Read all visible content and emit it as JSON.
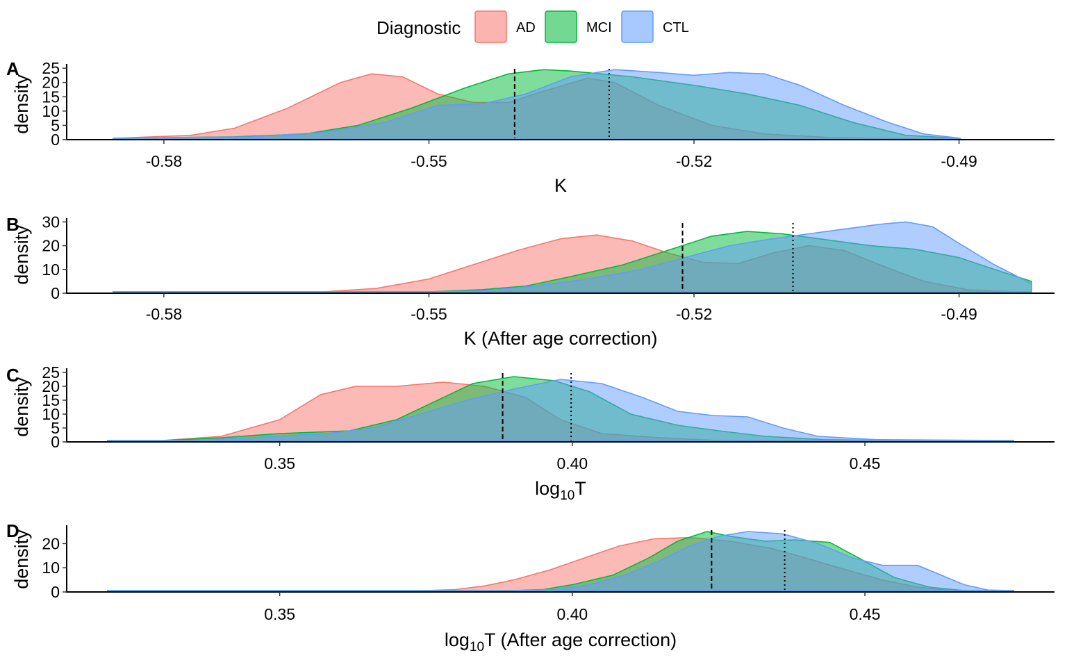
{
  "legend": {
    "title": "Diagnostic",
    "items": [
      {
        "label": "AD",
        "color": "#F8766D"
      },
      {
        "label": "MCI",
        "color": "#00BA38"
      },
      {
        "label": "CTL",
        "color": "#619CFF"
      }
    ]
  },
  "chart_data": [
    {
      "tag": "A",
      "type": "area",
      "xlabel": "K",
      "ylabel": "density",
      "xlim": [
        -0.591,
        -0.4792
      ],
      "ylim": [
        0,
        26
      ],
      "xticks": [
        -0.58,
        -0.55,
        -0.52,
        -0.49
      ],
      "xtick_labels": [
        "-0.58",
        "-0.55",
        "-0.52",
        "-0.49"
      ],
      "yticks": [
        0,
        5,
        10,
        15,
        20,
        25
      ],
      "ytick_labels": [
        "0",
        "5",
        "10",
        "15",
        "20",
        "25"
      ],
      "vlines": [
        {
          "x": -0.5403,
          "style": "dashed"
        },
        {
          "x": -0.5296,
          "style": "dotted"
        }
      ],
      "series": [
        {
          "name": "AD",
          "points": [
            [
              -0.5858,
              0
            ],
            [
              -0.577,
              1.5
            ],
            [
              -0.572,
              4
            ],
            [
              -0.566,
              11
            ],
            [
              -0.56,
              20
            ],
            [
              -0.5565,
              23
            ],
            [
              -0.553,
              22
            ],
            [
              -0.549,
              16
            ],
            [
              -0.545,
              13
            ],
            [
              -0.541,
              13
            ],
            [
              -0.537,
              17
            ],
            [
              -0.532,
              21.5
            ],
            [
              -0.529,
              20
            ],
            [
              -0.524,
              12
            ],
            [
              -0.518,
              5
            ],
            [
              -0.512,
              2
            ],
            [
              -0.505,
              0.8
            ],
            [
              -0.498,
              0.3
            ],
            [
              -0.4898,
              0
            ]
          ]
        },
        {
          "name": "MCI",
          "points": [
            [
              -0.5858,
              0
            ],
            [
              -0.572,
              1
            ],
            [
              -0.564,
              2
            ],
            [
              -0.558,
              5
            ],
            [
              -0.552,
              11
            ],
            [
              -0.546,
              18
            ],
            [
              -0.541,
              23
            ],
            [
              -0.537,
              24.5
            ],
            [
              -0.534,
              24
            ],
            [
              -0.527,
              22
            ],
            [
              -0.52,
              19
            ],
            [
              -0.514,
              16
            ],
            [
              -0.508,
              12
            ],
            [
              -0.502,
              6
            ],
            [
              -0.496,
              1.5
            ],
            [
              -0.4898,
              0
            ]
          ]
        },
        {
          "name": "CTL",
          "points": [
            [
              -0.5858,
              0
            ],
            [
              -0.57,
              1
            ],
            [
              -0.562,
              2.5
            ],
            [
              -0.555,
              6
            ],
            [
              -0.549,
              12
            ],
            [
              -0.544,
              12.5
            ],
            [
              -0.539,
              16
            ],
            [
              -0.534,
              22
            ],
            [
              -0.529,
              24.5
            ],
            [
              -0.524,
              23.5
            ],
            [
              -0.52,
              22.5
            ],
            [
              -0.516,
              23.5
            ],
            [
              -0.512,
              23
            ],
            [
              -0.508,
              19
            ],
            [
              -0.503,
              12
            ],
            [
              -0.498,
              6
            ],
            [
              -0.494,
              2
            ],
            [
              -0.4898,
              0
            ]
          ]
        }
      ]
    },
    {
      "tag": "B",
      "type": "area",
      "xlabel": "K (After age correction)",
      "ylabel": "density",
      "xlim": [
        -0.591,
        -0.4792
      ],
      "ylim": [
        0,
        31
      ],
      "xticks": [
        -0.58,
        -0.55,
        -0.52,
        -0.49
      ],
      "xtick_labels": [
        "-0.58",
        "-0.55",
        "-0.52",
        "-0.49"
      ],
      "yticks": [
        0,
        10,
        20,
        30
      ],
      "ytick_labels": [
        "0",
        "10",
        "20",
        "30"
      ],
      "vlines": [
        {
          "x": -0.5213,
          "style": "dashed"
        },
        {
          "x": -0.5088,
          "style": "dotted"
        }
      ],
      "series": [
        {
          "name": "AD",
          "points": [
            [
              -0.5858,
              0
            ],
            [
              -0.562,
              0.5
            ],
            [
              -0.556,
              2
            ],
            [
              -0.55,
              6
            ],
            [
              -0.545,
              12
            ],
            [
              -0.54,
              18
            ],
            [
              -0.535,
              23
            ],
            [
              -0.531,
              24.5
            ],
            [
              -0.527,
              22
            ],
            [
              -0.523,
              17
            ],
            [
              -0.519,
              13
            ],
            [
              -0.515,
              12.5
            ],
            [
              -0.511,
              17
            ],
            [
              -0.507,
              20
            ],
            [
              -0.503,
              18
            ],
            [
              -0.499,
              12
            ],
            [
              -0.494,
              5
            ],
            [
              -0.489,
              1.5
            ],
            [
              -0.484,
              0.3
            ],
            [
              -0.4868,
              0
            ]
          ]
        },
        {
          "name": "MCI",
          "points": [
            [
              -0.5858,
              0
            ],
            [
              -0.55,
              0.5
            ],
            [
              -0.544,
              1.5
            ],
            [
              -0.539,
              3
            ],
            [
              -0.534,
              7
            ],
            [
              -0.528,
              12
            ],
            [
              -0.523,
              18
            ],
            [
              -0.518,
              24
            ],
            [
              -0.514,
              26
            ],
            [
              -0.51,
              25
            ],
            [
              -0.505,
              22.5
            ],
            [
              -0.5,
              20
            ],
            [
              -0.495,
              18.5
            ],
            [
              -0.49,
              15
            ],
            [
              -0.486,
              10
            ],
            [
              -0.4818,
              5
            ]
          ]
        },
        {
          "name": "CTL",
          "points": [
            [
              -0.5858,
              0
            ],
            [
              -0.55,
              0.3
            ],
            [
              -0.544,
              1
            ],
            [
              -0.538,
              3
            ],
            [
              -0.532,
              6
            ],
            [
              -0.526,
              10
            ],
            [
              -0.521,
              15
            ],
            [
              -0.516,
              20
            ],
            [
              -0.511,
              23
            ],
            [
              -0.507,
              25
            ],
            [
              -0.503,
              27
            ],
            [
              -0.499,
              29
            ],
            [
              -0.496,
              30
            ],
            [
              -0.493,
              28
            ],
            [
              -0.49,
              21
            ],
            [
              -0.486,
              12
            ],
            [
              -0.4818,
              4
            ]
          ]
        }
      ]
    },
    {
      "tag": "C",
      "type": "area",
      "xlabel": "log₁₀T",
      "ylabel": "density",
      "xlim": [
        0.3136,
        0.4824
      ],
      "ylim": [
        0,
        26
      ],
      "xticks": [
        0.35,
        0.4,
        0.45
      ],
      "xtick_labels": [
        "0.35",
        "0.40",
        "0.45"
      ],
      "yticks": [
        0,
        5,
        10,
        15,
        20,
        25
      ],
      "ytick_labels": [
        "0",
        "5",
        "10",
        "15",
        "20",
        "25"
      ],
      "vlines": [
        {
          "x": 0.3881,
          "style": "dashed"
        },
        {
          "x": 0.3998,
          "style": "dotted"
        }
      ],
      "series": [
        {
          "name": "AD",
          "points": [
            [
              0.3205,
              0
            ],
            [
              0.33,
              0.4
            ],
            [
              0.34,
              2
            ],
            [
              0.35,
              8
            ],
            [
              0.357,
              17
            ],
            [
              0.363,
              20
            ],
            [
              0.37,
              20
            ],
            [
              0.378,
              21.5
            ],
            [
              0.385,
              20
            ],
            [
              0.392,
              16
            ],
            [
              0.398,
              8
            ],
            [
              0.405,
              3
            ],
            [
              0.415,
              1.5
            ],
            [
              0.425,
              0.5
            ],
            [
              0.44,
              0.2
            ],
            [
              0.4755,
              0
            ]
          ]
        },
        {
          "name": "MCI",
          "points": [
            [
              0.3205,
              0
            ],
            [
              0.33,
              0.5
            ],
            [
              0.34,
              1.5
            ],
            [
              0.35,
              3
            ],
            [
              0.362,
              4
            ],
            [
              0.37,
              8
            ],
            [
              0.377,
              15
            ],
            [
              0.383,
              21
            ],
            [
              0.39,
              23.5
            ],
            [
              0.397,
              22
            ],
            [
              0.403,
              18
            ],
            [
              0.41,
              10
            ],
            [
              0.418,
              6
            ],
            [
              0.425,
              4
            ],
            [
              0.433,
              2
            ],
            [
              0.443,
              0.8
            ],
            [
              0.455,
              0.2
            ],
            [
              0.4755,
              0
            ]
          ]
        },
        {
          "name": "CTL",
          "points": [
            [
              0.3205,
              0
            ],
            [
              0.335,
              0.5
            ],
            [
              0.345,
              1.5
            ],
            [
              0.358,
              3
            ],
            [
              0.366,
              5
            ],
            [
              0.374,
              10
            ],
            [
              0.382,
              15
            ],
            [
              0.39,
              19
            ],
            [
              0.398,
              22.5
            ],
            [
              0.405,
              21
            ],
            [
              0.412,
              16
            ],
            [
              0.418,
              11
            ],
            [
              0.424,
              9.5
            ],
            [
              0.43,
              9
            ],
            [
              0.436,
              5
            ],
            [
              0.442,
              2
            ],
            [
              0.452,
              0.8
            ],
            [
              0.4755,
              0
            ]
          ]
        }
      ]
    },
    {
      "tag": "D",
      "type": "area",
      "xlabel": "log₁₀T (After age correction)",
      "ylabel": "density",
      "xlim": [
        0.3136,
        0.4824
      ],
      "ylim": [
        0,
        27
      ],
      "xticks": [
        0.35,
        0.4,
        0.45
      ],
      "xtick_labels": [
        "0.35",
        "0.40",
        "0.45"
      ],
      "yticks": [
        0,
        10,
        20
      ],
      "ytick_labels": [
        "0",
        "10",
        "20"
      ],
      "vlines": [
        {
          "x": 0.4238,
          "style": "dashed"
        },
        {
          "x": 0.4363,
          "style": "dotted"
        }
      ],
      "series": [
        {
          "name": "AD",
          "points": [
            [
              0.3205,
              0
            ],
            [
              0.375,
              0.3
            ],
            [
              0.38,
              1
            ],
            [
              0.385,
              2.5
            ],
            [
              0.39,
              5
            ],
            [
              0.396,
              9
            ],
            [
              0.402,
              14
            ],
            [
              0.408,
              19
            ],
            [
              0.414,
              22
            ],
            [
              0.42,
              22.5
            ],
            [
              0.427,
              21
            ],
            [
              0.434,
              18
            ],
            [
              0.44,
              14
            ],
            [
              0.447,
              9
            ],
            [
              0.453,
              5
            ],
            [
              0.459,
              2
            ],
            [
              0.465,
              0.5
            ],
            [
              0.4755,
              0
            ]
          ]
        },
        {
          "name": "MCI",
          "points": [
            [
              0.3205,
              0
            ],
            [
              0.39,
              0.3
            ],
            [
              0.395,
              1
            ],
            [
              0.4,
              3
            ],
            [
              0.407,
              7
            ],
            [
              0.413,
              14
            ],
            [
              0.418,
              21
            ],
            [
              0.423,
              25
            ],
            [
              0.427,
              23
            ],
            [
              0.433,
              21
            ],
            [
              0.438,
              21.5
            ],
            [
              0.444,
              20.5
            ],
            [
              0.449,
              14
            ],
            [
              0.455,
              6
            ],
            [
              0.461,
              2
            ],
            [
              0.467,
              0.5
            ],
            [
              0.4755,
              0
            ]
          ]
        },
        {
          "name": "CTL",
          "points": [
            [
              0.3205,
              0
            ],
            [
              0.39,
              0.3
            ],
            [
              0.397,
              1
            ],
            [
              0.403,
              3
            ],
            [
              0.409,
              7
            ],
            [
              0.415,
              13
            ],
            [
              0.42,
              19
            ],
            [
              0.425,
              23
            ],
            [
              0.43,
              25
            ],
            [
              0.436,
              24
            ],
            [
              0.442,
              20
            ],
            [
              0.448,
              14
            ],
            [
              0.453,
              11
            ],
            [
              0.459,
              11
            ],
            [
              0.463,
              7
            ],
            [
              0.467,
              3
            ],
            [
              0.471,
              0.8
            ],
            [
              0.4755,
              0
            ]
          ]
        }
      ]
    }
  ]
}
